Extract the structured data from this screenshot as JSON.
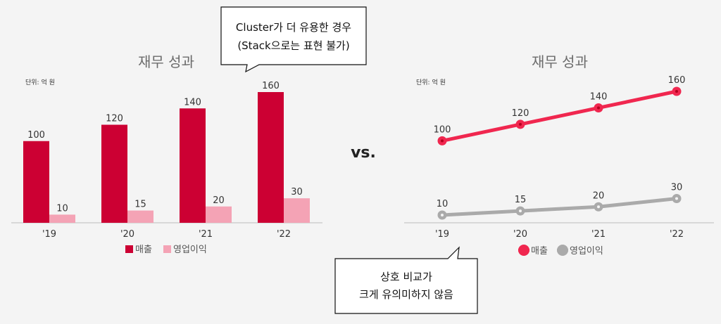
{
  "vs_label": "vs.",
  "callout_top": {
    "line1": "Cluster가 더 유용한 경우",
    "line2": "(Stack으로는 표현 불가)"
  },
  "callout_bottom": {
    "line1": "상호 비교가",
    "line2": "크게 유의미하지 않음"
  },
  "chart_data": [
    {
      "type": "bar",
      "title": "재무 성과",
      "unit_note": "단위: 억 원",
      "categories": [
        "'19",
        "'20",
        "'21",
        "'22"
      ],
      "series": [
        {
          "name": "매출",
          "color": "#cc0033",
          "values": [
            100,
            120,
            140,
            160
          ]
        },
        {
          "name": "영업이익",
          "color": "#f4a3b5",
          "values": [
            10,
            15,
            20,
            30
          ]
        }
      ],
      "ylim": [
        0,
        160
      ],
      "legend": "bottom"
    },
    {
      "type": "line",
      "title": "재무 성과",
      "unit_note": "단위: 억 원",
      "categories": [
        "'19",
        "'20",
        "'21",
        "'22"
      ],
      "series": [
        {
          "name": "매출",
          "color": "#f0274f",
          "values": [
            100,
            120,
            140,
            160
          ]
        },
        {
          "name": "영업이익",
          "color": "#aaaaaa",
          "values": [
            10,
            15,
            20,
            30
          ]
        }
      ],
      "ylim": [
        0,
        160
      ],
      "legend": "bottom"
    }
  ]
}
